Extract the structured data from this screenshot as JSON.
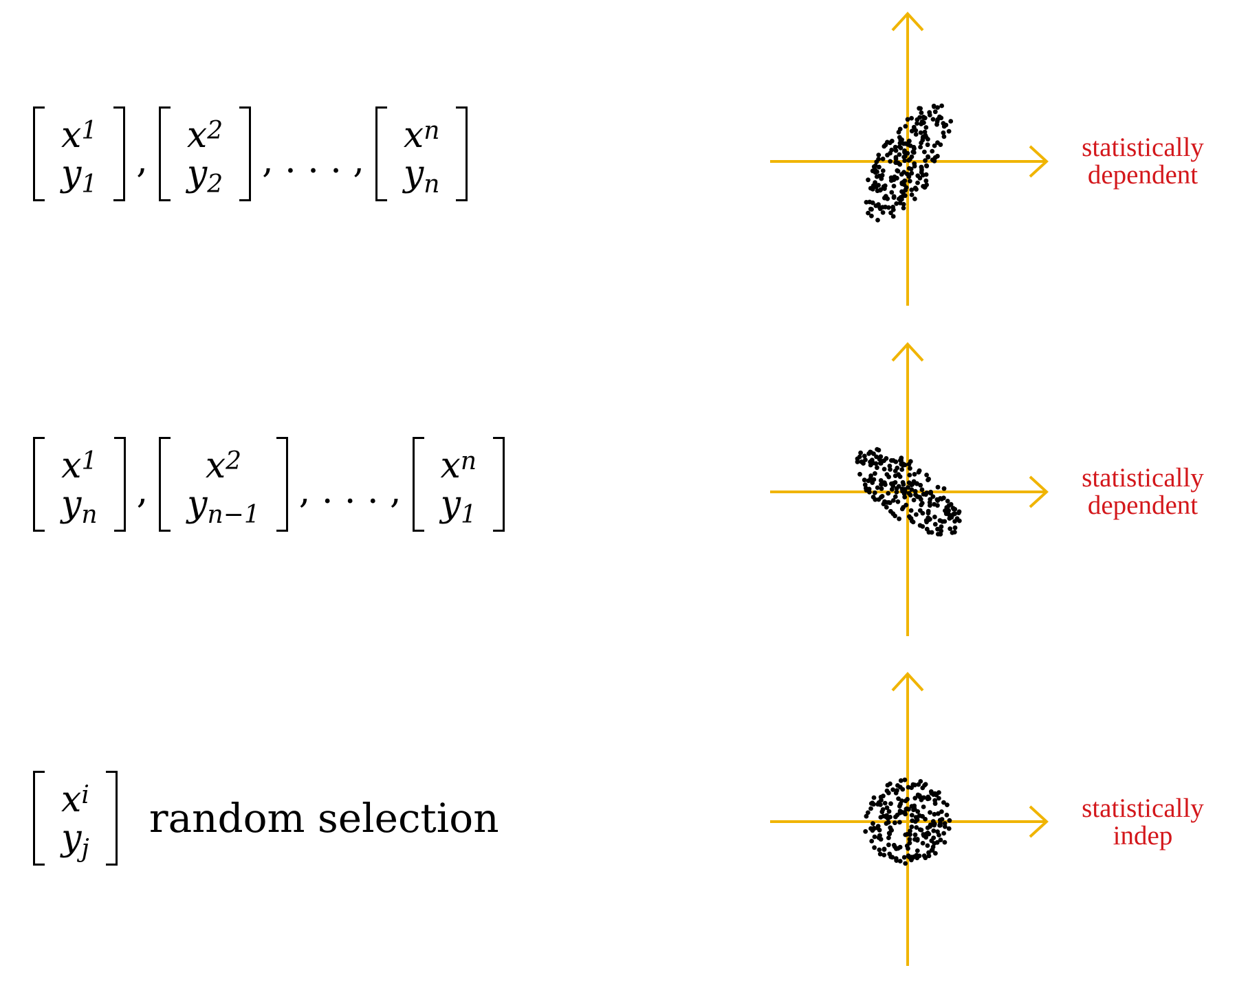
{
  "colors": {
    "axis": "#f0b400",
    "dots": "#000000",
    "note": "#d3171b"
  },
  "rows": [
    {
      "vectors": [
        {
          "top": "x",
          "top_sub": "1",
          "bottom": "y",
          "bottom_sub": "1"
        },
        {
          "top": "x",
          "top_sub": "2",
          "bottom": "y",
          "bottom_sub": "2"
        },
        {
          "top": "x",
          "top_sub": "n",
          "bottom": "y",
          "bottom_sub": "n"
        }
      ],
      "separators": [
        ",",
        ", . . . ,"
      ],
      "note": [
        "statistically",
        "dependent"
      ],
      "correlation": "positive"
    },
    {
      "vectors": [
        {
          "top": "x",
          "top_sub": "1",
          "bottom": "y",
          "bottom_sub": "n"
        },
        {
          "top": "x",
          "top_sub": "2",
          "bottom": "y",
          "bottom_sub": "n−1"
        },
        {
          "top": "x",
          "top_sub": "n",
          "bottom": "y",
          "bottom_sub": "1"
        }
      ],
      "separators": [
        ",",
        ", . . . ,"
      ],
      "note": [
        "statistically",
        "dependent"
      ],
      "correlation": "negative"
    },
    {
      "vectors": [
        {
          "top": "x",
          "top_sub": "i",
          "bottom": "y",
          "bottom_sub": "j"
        }
      ],
      "separators": [],
      "phrase": "random selection",
      "note": [
        "statistically",
        "indep"
      ],
      "correlation": "none"
    }
  ]
}
